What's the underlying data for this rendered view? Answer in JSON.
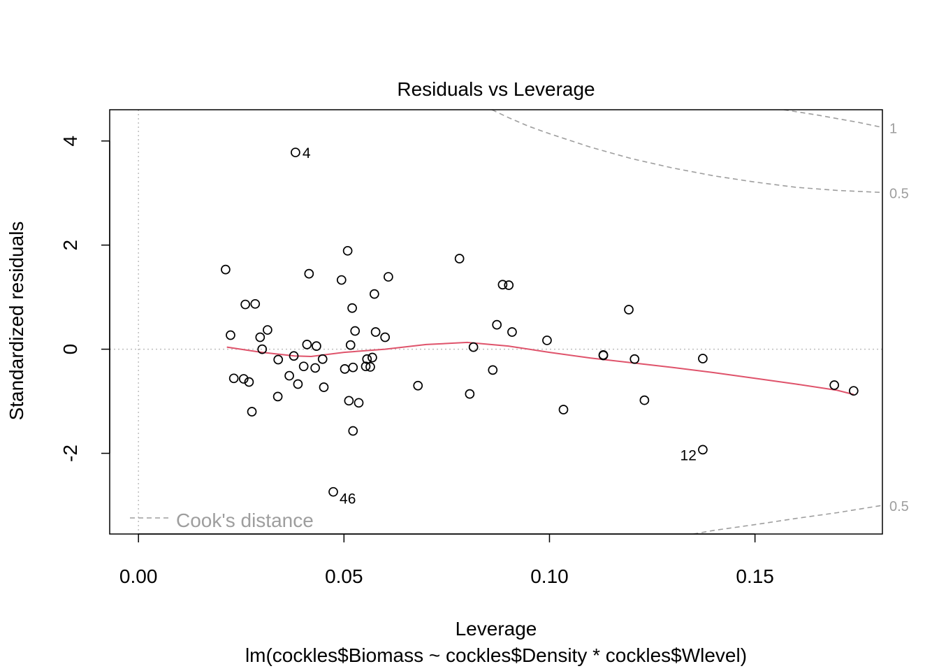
{
  "chart_data": {
    "type": "scatter",
    "title": "Residuals vs Leverage",
    "xlabel": "Leverage",
    "ylabel": "Standardized residuals",
    "subtitle": "lm(cockles$Biomass ~ cockles$Density * cockles$Wlevel)",
    "xlim": [
      -0.007,
      0.181
    ],
    "ylim": [
      -3.55,
      4.6
    ],
    "x_ticks": [
      "0.00",
      "0.05",
      "0.10",
      "0.15"
    ],
    "y_ticks": [
      "-2",
      "0",
      "2",
      "4"
    ],
    "grid": false,
    "reference_lines": {
      "x": 0,
      "y": 0
    },
    "points": [
      [
        0.0382,
        3.78
      ],
      [
        0.0212,
        1.53
      ],
      [
        0.0224,
        0.27
      ],
      [
        0.0232,
        -0.56
      ],
      [
        0.0256,
        -0.57
      ],
      [
        0.026,
        0.86
      ],
      [
        0.0269,
        -0.63
      ],
      [
        0.0276,
        -1.2
      ],
      [
        0.0284,
        0.87
      ],
      [
        0.0296,
        0.23
      ],
      [
        0.0301,
        0.0
      ],
      [
        0.0314,
        0.37
      ],
      [
        0.0339,
        -0.91
      ],
      [
        0.034,
        -0.2
      ],
      [
        0.0367,
        -0.51
      ],
      [
        0.0378,
        -0.13
      ],
      [
        0.0388,
        -0.67
      ],
      [
        0.0402,
        -0.33
      ],
      [
        0.041,
        0.09
      ],
      [
        0.0415,
        1.45
      ],
      [
        0.043,
        -0.36
      ],
      [
        0.0433,
        0.06
      ],
      [
        0.0448,
        -0.19
      ],
      [
        0.0451,
        -0.73
      ],
      [
        0.0474,
        -2.74
      ],
      [
        0.0494,
        1.33
      ],
      [
        0.0502,
        -0.38
      ],
      [
        0.0509,
        1.89
      ],
      [
        0.0512,
        -0.99
      ],
      [
        0.0516,
        0.08
      ],
      [
        0.052,
        0.79
      ],
      [
        0.0522,
        -1.57
      ],
      [
        0.0522,
        -0.35
      ],
      [
        0.0527,
        0.35
      ],
      [
        0.0536,
        -1.03
      ],
      [
        0.0553,
        -0.33
      ],
      [
        0.0556,
        -0.19
      ],
      [
        0.0564,
        -0.34
      ],
      [
        0.0569,
        -0.16
      ],
      [
        0.0574,
        1.06
      ],
      [
        0.0577,
        0.33
      ],
      [
        0.06,
        0.23
      ],
      [
        0.0608,
        1.39
      ],
      [
        0.068,
        -0.7
      ],
      [
        0.0781,
        1.74
      ],
      [
        0.0806,
        -0.86
      ],
      [
        0.0815,
        0.04
      ],
      [
        0.0862,
        -0.4
      ],
      [
        0.0872,
        0.47
      ],
      [
        0.0886,
        1.24
      ],
      [
        0.0901,
        1.23
      ],
      [
        0.0909,
        0.33
      ],
      [
        0.0994,
        0.17
      ],
      [
        0.1034,
        -1.16
      ],
      [
        0.1131,
        -0.11
      ],
      [
        0.1131,
        -0.12
      ],
      [
        0.1193,
        0.76
      ],
      [
        0.1207,
        -0.19
      ],
      [
        0.1231,
        -0.98
      ],
      [
        0.1373,
        -0.18
      ],
      [
        0.1373,
        -1.93
      ],
      [
        0.1693,
        -0.69
      ],
      [
        0.174,
        -0.8
      ]
    ],
    "point_labels": [
      {
        "text": "4",
        "x": 0.0382,
        "y": 3.78
      },
      {
        "text": "46",
        "x": 0.0474,
        "y": -2.74
      },
      {
        "text": "12",
        "x": 0.1373,
        "y": -1.93
      }
    ],
    "smooth_line": {
      "color": "#DF536B",
      "points": [
        [
          0.0215,
          0.04
        ],
        [
          0.03,
          -0.06
        ],
        [
          0.038,
          -0.13
        ],
        [
          0.042,
          -0.14
        ],
        [
          0.05,
          -0.06
        ],
        [
          0.06,
          0.0
        ],
        [
          0.07,
          0.09
        ],
        [
          0.08,
          0.13
        ],
        [
          0.09,
          0.06
        ],
        [
          0.1,
          -0.06
        ],
        [
          0.11,
          -0.17
        ],
        [
          0.12,
          -0.26
        ],
        [
          0.13,
          -0.35
        ],
        [
          0.14,
          -0.45
        ],
        [
          0.15,
          -0.56
        ],
        [
          0.16,
          -0.67
        ],
        [
          0.17,
          -0.79
        ],
        [
          0.174,
          -0.87
        ]
      ]
    },
    "cooks_distance": {
      "legend": "Cook's distance",
      "color": "#9E9E9E",
      "labels": [
        "1",
        "0.5",
        "0.5"
      ],
      "curves": [
        {
          "level": "1",
          "sign": "positive",
          "points": [
            [
              0.157,
              4.6
            ],
            [
              0.165,
              4.5
            ],
            [
              0.17,
              4.43
            ],
            [
              0.175,
              4.36
            ],
            [
              0.181,
              4.26
            ]
          ]
        },
        {
          "level": "0.5",
          "sign": "positive",
          "points": [
            [
              0.086,
              4.6
            ],
            [
              0.09,
              4.45
            ],
            [
              0.095,
              4.28
            ],
            [
              0.1,
              4.14
            ],
            [
              0.11,
              3.88
            ],
            [
              0.12,
              3.66
            ],
            [
              0.13,
              3.48
            ],
            [
              0.14,
              3.33
            ],
            [
              0.15,
              3.21
            ],
            [
              0.16,
              3.11
            ],
            [
              0.17,
              3.05
            ],
            [
              0.181,
              3.01
            ]
          ]
        },
        {
          "level": "0.5",
          "sign": "negative",
          "points": [
            [
              0.135,
              -3.55
            ],
            [
              0.14,
              -3.48
            ],
            [
              0.15,
              -3.37
            ],
            [
              0.16,
              -3.25
            ],
            [
              0.17,
              -3.14
            ],
            [
              0.181,
              -3.0
            ]
          ]
        }
      ]
    }
  }
}
